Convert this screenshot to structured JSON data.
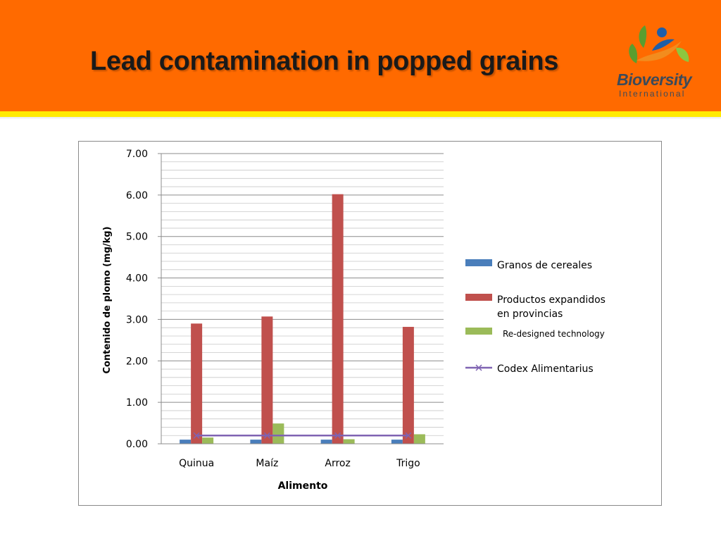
{
  "slide": {
    "title": "Lead contamination in popped grains",
    "logo_name": "Bioversity",
    "logo_subtitle": "International"
  },
  "colors": {
    "header": "#ff6a00",
    "stripe": "#ffea00",
    "series_blue": "#4a7ebb",
    "series_red": "#c0504d",
    "series_green": "#9bbb59",
    "codex_line": "#7f63b2"
  },
  "chart_data": {
    "type": "bar",
    "categories": [
      "Quinua",
      "Maíz",
      "Arroz",
      "Trigo"
    ],
    "series": [
      {
        "name": "Granos de cereales",
        "type": "bar",
        "color": "#4a7ebb",
        "values": [
          0.1,
          0.1,
          0.1,
          0.1
        ]
      },
      {
        "name": "Productos expandidos en provincias",
        "type": "bar",
        "color": "#c0504d",
        "values": [
          2.9,
          3.07,
          6.02,
          2.82
        ]
      },
      {
        "name": "Re-designed technology",
        "type": "bar",
        "color": "#9bbb59",
        "values": [
          0.15,
          0.49,
          0.11,
          0.23
        ]
      },
      {
        "name": "Codex Alimentarius",
        "type": "line",
        "color": "#7f63b2",
        "values": [
          0.2,
          0.2,
          0.2,
          0.2
        ]
      }
    ],
    "y_ticks": [
      "0.00",
      "1.00",
      "2.00",
      "3.00",
      "4.00",
      "5.00",
      "6.00",
      "7.00"
    ],
    "xlabel": "Alimento",
    "ylabel": "Contenido de plomo (mg/kg)",
    "ylim": [
      0,
      7
    ],
    "grid": true,
    "legend": "right"
  }
}
